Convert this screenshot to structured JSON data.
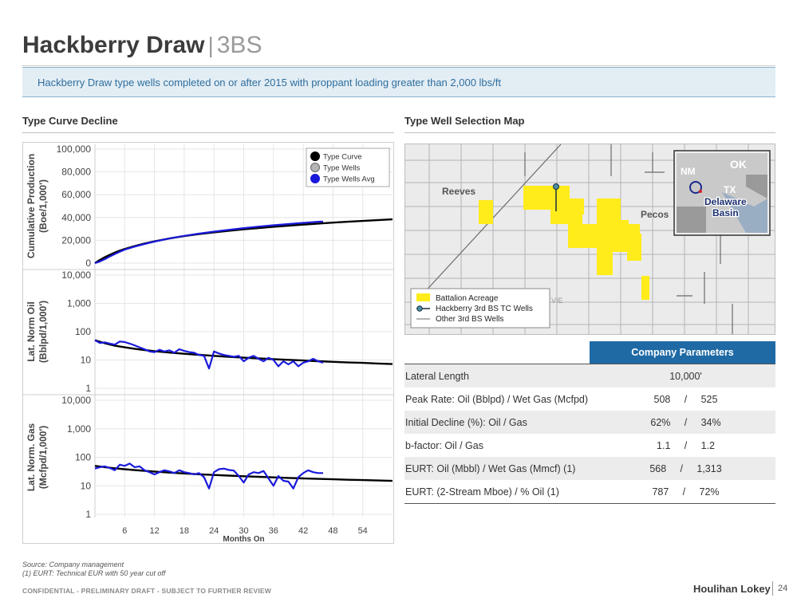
{
  "header": {
    "title": "Hackberry Draw",
    "separator": "|",
    "subtitle": "3BS",
    "banner": "Hackberry Draw type wells completed on or after 2015 with proppant loading greater than 2,000 lbs/ft"
  },
  "sections": {
    "left_title": "Type Curve Decline",
    "right_title": "Type Well Selection Map"
  },
  "chart_data": [
    {
      "type": "line",
      "id": "cumulative",
      "ylabel_line1": "Cumulative Production",
      "ylabel_line2": "(Boe/1,000')",
      "ylim": [
        0,
        100000
      ],
      "yticks": [
        "100,000",
        "80,000",
        "60,000",
        "40,000",
        "20,000",
        "0"
      ],
      "xlim": [
        0,
        60
      ],
      "legend": {
        "position": "top-right",
        "entries": [
          "Type Curve",
          "Type Wells",
          "Type Wells Avg"
        ]
      },
      "series": [
        {
          "name": "Type Curve",
          "color": "#000000",
          "x": [
            0,
            1,
            2,
            3,
            4,
            5,
            6,
            8,
            10,
            12,
            15,
            18,
            21,
            24,
            27,
            30,
            33,
            36,
            39,
            42,
            45,
            48,
            51,
            54,
            57,
            60
          ],
          "values": [
            0,
            2800,
            5200,
            7300,
            9200,
            10900,
            12400,
            15000,
            17200,
            19100,
            21600,
            23700,
            25500,
            27000,
            28400,
            29700,
            30800,
            31900,
            32900,
            33800,
            34700,
            35500,
            36300,
            37000,
            37700,
            38400
          ]
        },
        {
          "name": "Type Wells Avg",
          "color": "#1a1adb",
          "x": [
            0,
            1,
            2,
            3,
            4,
            5,
            6,
            8,
            10,
            12,
            15,
            18,
            21,
            24,
            27,
            30,
            33,
            36,
            39,
            42,
            45,
            46
          ],
          "values": [
            0,
            1500,
            3500,
            5800,
            8000,
            10000,
            11800,
            14500,
            16800,
            18900,
            21600,
            23900,
            25900,
            27600,
            29200,
            30700,
            32000,
            33200,
            34300,
            35300,
            36300,
            36500
          ]
        }
      ]
    },
    {
      "type": "line",
      "id": "oil",
      "ylabel_line1": "Lat. Norm Oil",
      "ylabel_line2": "(Bblpd/1,000')",
      "scale": "log",
      "ylim": [
        1,
        10000
      ],
      "yticks": [
        "10,000",
        "1,000",
        "100",
        "10",
        "1"
      ],
      "xlim": [
        0,
        60
      ],
      "series": [
        {
          "name": "Type Curve",
          "color": "#000000",
          "x": [
            0,
            2,
            4,
            6,
            8,
            10,
            12,
            15,
            18,
            21,
            24,
            27,
            30,
            33,
            36,
            39,
            42,
            45,
            48,
            51,
            54,
            57,
            60
          ],
          "values": [
            50,
            39,
            32,
            28,
            25,
            22.5,
            20.5,
            18.3,
            16.6,
            15.2,
            14.0,
            13.0,
            12.1,
            11.4,
            10.7,
            10.1,
            9.6,
            9.1,
            8.6,
            8.2,
            7.9,
            7.5,
            7.2
          ]
        },
        {
          "name": "Type Wells Avg",
          "color": "#1a1adb",
          "x": [
            0,
            1,
            2,
            3,
            4,
            5,
            6,
            7,
            8,
            9,
            10,
            11,
            12,
            13,
            14,
            15,
            16,
            17,
            18,
            19,
            20,
            21,
            22,
            23,
            24,
            25,
            26,
            27,
            28,
            29,
            30,
            31,
            32,
            33,
            34,
            35,
            36,
            37,
            38,
            39,
            40,
            41,
            42,
            43,
            44,
            45,
            46
          ],
          "values": [
            50,
            40,
            42,
            38,
            35,
            45,
            43,
            38,
            33,
            28,
            24,
            20,
            19,
            23,
            20,
            22,
            18,
            24,
            21,
            19,
            18,
            15,
            14,
            5,
            20,
            17,
            15,
            14,
            13,
            14,
            9,
            12,
            14,
            11,
            9,
            12,
            10,
            6,
            9,
            7,
            9,
            6,
            8,
            9,
            11,
            9,
            8
          ]
        }
      ]
    },
    {
      "type": "line",
      "id": "gas",
      "ylabel_line1": "Lat. Norm. Gas",
      "ylabel_line2": "(Mcfpd/1,000')",
      "scale": "log",
      "ylim": [
        1,
        10000
      ],
      "yticks": [
        "10,000",
        "1,000",
        "100",
        "10",
        "1"
      ],
      "xlim": [
        0,
        60
      ],
      "xlabel": "Months On",
      "xticks": [
        "6",
        "12",
        "18",
        "24",
        "30",
        "36",
        "42",
        "48",
        "54"
      ],
      "series": [
        {
          "name": "Type Curve",
          "color": "#000000",
          "x": [
            0,
            2,
            4,
            6,
            8,
            10,
            12,
            15,
            18,
            21,
            24,
            27,
            30,
            33,
            36,
            39,
            42,
            45,
            48,
            51,
            54,
            57,
            60
          ],
          "values": [
            50,
            45,
            41,
            38,
            35.5,
            33.5,
            31.5,
            29,
            27,
            25.3,
            23.9,
            22.7,
            21.6,
            20.6,
            19.7,
            18.9,
            18.2,
            17.5,
            16.9,
            16.3,
            15.8,
            15.3,
            14.9
          ]
        },
        {
          "name": "Type Wells Avg",
          "color": "#1a1adb",
          "x": [
            0,
            1,
            2,
            3,
            4,
            5,
            6,
            7,
            8,
            9,
            10,
            11,
            12,
            13,
            14,
            15,
            16,
            17,
            18,
            19,
            20,
            21,
            22,
            23,
            24,
            25,
            26,
            27,
            28,
            29,
            30,
            31,
            32,
            33,
            34,
            35,
            36,
            37,
            38,
            39,
            40,
            41,
            42,
            43,
            44,
            45,
            46
          ],
          "values": [
            40,
            45,
            48,
            42,
            35,
            55,
            50,
            60,
            45,
            48,
            35,
            30,
            25,
            30,
            35,
            32,
            28,
            35,
            30,
            28,
            25,
            28,
            20,
            8,
            30,
            38,
            40,
            36,
            34,
            22,
            13,
            25,
            30,
            28,
            33,
            18,
            10,
            22,
            15,
            14,
            8,
            20,
            28,
            35,
            30,
            28,
            28
          ]
        }
      ]
    }
  ],
  "map": {
    "labels": {
      "reeves": "Reeves",
      "pecos": "Pecos"
    },
    "inset": {
      "nm": "NM",
      "ok": "OK",
      "tx": "TX",
      "basin_line1": "Delaware",
      "basin_line2": "Basin"
    },
    "stray_text": "VIE",
    "legend": [
      "Battalion Acreage",
      "Hackberry 3rd BS TC Wells",
      "Other 3rd BS Wells"
    ],
    "colors": {
      "acreage": "#ffec1a",
      "tc_well": "#4a8fa6",
      "grid": "#b3b3b3",
      "background": "#ebebeb"
    }
  },
  "parameters": {
    "header": "Company Parameters",
    "rows": [
      {
        "label": "Lateral Length",
        "value": "10,000'"
      },
      {
        "label": "Peak Rate: Oil (Bblpd) / Wet Gas (Mcfpd)",
        "value": "508     /     525"
      },
      {
        "label": "Initial Decline (%): Oil / Gas",
        "value": "62%     /     34%"
      },
      {
        "label": "b-factor: Oil / Gas",
        "value": "1.1     /     1.2"
      },
      {
        "label": "EURT: Oil (Mbbl) / Wet Gas (Mmcf) (1)",
        "value": "568     /     1,313"
      },
      {
        "label": "EURT: (2-Stream Mboe) / % Oil (1)",
        "value": "787     /     72%"
      }
    ]
  },
  "footer": {
    "source": "Source: Company management",
    "note": "(1)   EURT: Technical EUR with 50 year cut off",
    "confidential": "CONFIDENTIAL - PRELIMINARY DRAFT - SUBJECT TO FURTHER REVIEW",
    "brand": "Houlihan Lokey",
    "page": "24"
  }
}
